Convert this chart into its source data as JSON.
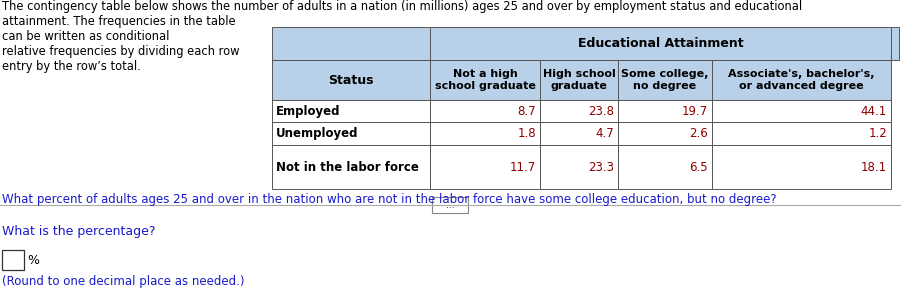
{
  "title_lines": [
    "The contingency table below shows the number of adults in a nation (in millions) ages 25 and over by employment status and educational",
    "attainment. The frequencies in the table",
    "can be written as conditional",
    "relative frequencies by dividing each row",
    "entry by the row’s total."
  ],
  "question_text": "What percent of adults ages 25 and over in the nation who are not in the labor force have some college education, but no degree?",
  "question2_text": "What is the percentage?",
  "answer_label": "%",
  "round_text": "(Round to one decimal place as needed.)",
  "col_header_top": "Educational Attainment",
  "col_headers": [
    "Not a high\nschool graduate",
    "High school\ngraduate",
    "Some college,\nno degree",
    "Associate's, bachelor's,\nor advanced degree"
  ],
  "row_header": "Status",
  "row_labels": [
    "Employed",
    "Unemployed",
    "Not in the labor force"
  ],
  "data": [
    [
      8.7,
      23.8,
      19.7,
      44.1
    ],
    [
      1.8,
      4.7,
      2.6,
      1.2
    ],
    [
      11.7,
      23.3,
      6.5,
      18.1
    ]
  ],
  "header_bg": "#b8d0e8",
  "cell_bg": "#ffffff",
  "text_color_black": "#000000",
  "text_color_blue": "#1a1acd",
  "text_color_data": "#8B0000",
  "bg_color": "#ffffff",
  "ellipsis_text": "..."
}
